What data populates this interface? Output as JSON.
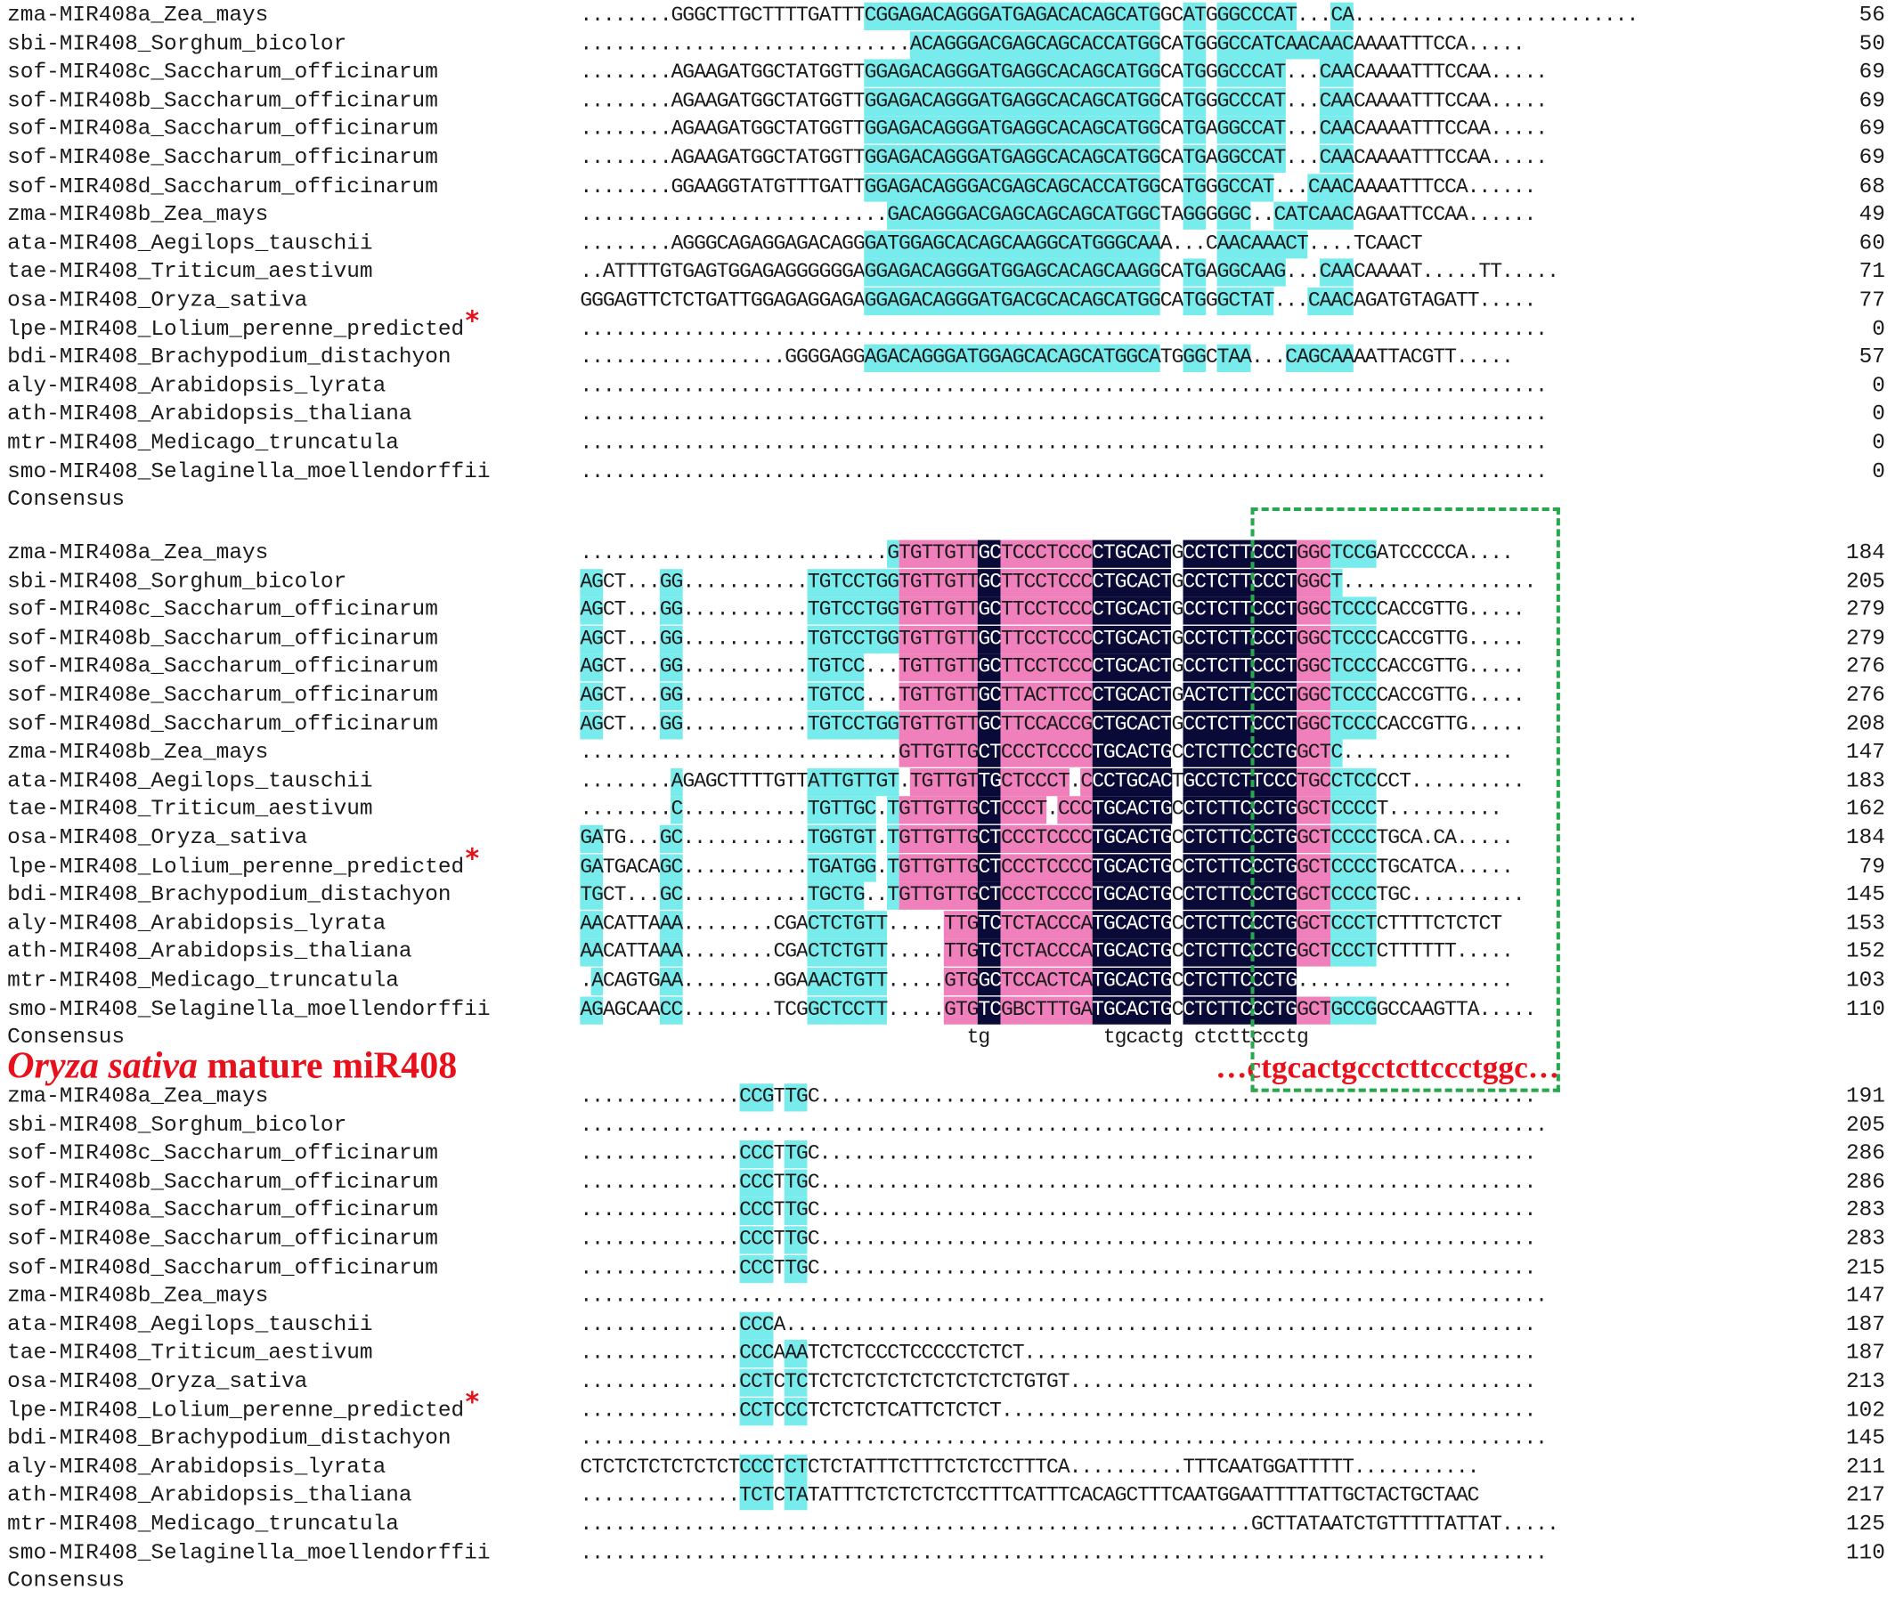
{
  "blocks": [
    {
      "rows": [
        {
          "name": "zma-MIR408a_Zea_mays",
          "seq": "........GGGCTTGCTTTTGATTTCGGAGACAGGGATGAGACACAGCATGGCATGGGCCCAT...CA.........................",
          "num": "56"
        },
        {
          "name": "sbi-MIR408_Sorghum_bicolor",
          "seq": ".............................ACAGGGACGAGCAGCACCATGGCATGGGCCATCAACAACAAAATTTCCA.....",
          "num": "50"
        },
        {
          "name": "sof-MIR408c_Saccharum_officinarum",
          "seq": "........AGAAGATGGCTATGGTTGGAGACAGGGATGAGGCACAGCATGGCATGGGCCCAT...CAACAAAATTTCCAA.....",
          "num": "69"
        },
        {
          "name": "sof-MIR408b_Saccharum_officinarum",
          "seq": "........AGAAGATGGCTATGGTTGGAGACAGGGATGAGGCACAGCATGGCATGGGCCCAT...CAACAAAATTTCCAA.....",
          "num": "69"
        },
        {
          "name": "sof-MIR408a_Saccharum_officinarum",
          "seq": "........AGAAGATGGCTATGGTTGGAGACAGGGATGAGGCACAGCATGGCATGAGGCCAT...CAACAAAATTTCCAA.....",
          "num": "69"
        },
        {
          "name": "sof-MIR408e_Saccharum_officinarum",
          "seq": "........AGAAGATGGCTATGGTTGGAGACAGGGATGAGGCACAGCATGGCATGAGGCCAT...CAACAAAATTTCCAA.....",
          "num": "69"
        },
        {
          "name": "sof-MIR408d_Saccharum_officinarum",
          "seq": "........GGAAGGTATGTTTGATTGGAGACAGGGACGAGCAGCACCATGGCATGGGCCAT...CAACAAAATTTCCA......",
          "num": "68"
        },
        {
          "name": "zma-MIR408b_Zea_mays",
          "seq": "...........................GACAGGGACGAGCAGCAGCATGGCTAGGGGGC..CATCAACAGAATTCCAA......",
          "num": "49"
        },
        {
          "name": "ata-MIR408_Aegilops_tauschii",
          "seq": "........AGGGCAGAGGAGACAGGGATGGAGCACAGCAAGGCATGGGCAAA...CAACAAACT....TCAACT",
          "num": "60"
        },
        {
          "name": "tae-MIR408_Triticum_aestivum",
          "seq": "..ATTTTGTGAGTGGAGAGGGGGGAGGAGACAGGGATGGAGCACAGCAAGGCATGAGGCAAG...CAACAAAAT.....TT.....",
          "num": "71"
        },
        {
          "name": "osa-MIR408_Oryza_sativa",
          "seq": "GGGAGTTCTCTGATTGGAGAGGAGAGGAGACAGGGATGACGCACAGCATGGCATGGGCTAT...CAACAGATGTAGATT.....",
          "num": "77"
        },
        {
          "name": "lpe-MIR408_Lolium_perenne_predicted",
          "star": "*",
          "seq": ".....................................................................................",
          "num": "0"
        },
        {
          "name": "bdi-MIR408_Brachypodium_distachyon",
          "seq": "..................GGGGAGGAGACAGGGATGGAGCACAGCATGGCATGGGCTAA...CAGCAAAATTACGTT.....",
          "num": "57"
        },
        {
          "name": "aly-MIR408_Arabidopsis_lyrata",
          "seq": ".....................................................................................",
          "num": "0"
        },
        {
          "name": "ath-MIR408_Arabidopsis_thaliana",
          "seq": ".....................................................................................",
          "num": "0"
        },
        {
          "name": "mtr-MIR408_Medicago_truncatula",
          "seq": ".....................................................................................",
          "num": "0"
        },
        {
          "name": "smo-MIR408_Selaginella_moellendorffii",
          "seq": ".....................................................................................",
          "num": "0"
        }
      ],
      "consensus_label": "Consensus",
      "consensus_seq": ""
    },
    {
      "rows": [
        {
          "name": "zma-MIR408a_Zea_mays",
          "seq": "...........................GTGTTGTTGCTCCCTCCCCTGCACTGCCTCTTCCCTGGCTCCGATCCCCCA....",
          "num": "184"
        },
        {
          "name": "sbi-MIR408_Sorghum_bicolor",
          "seq": "AGCT...GG...........TGTCCTGGTGTTGTTGCTTCCTCCCCTGCACTGCCTCTTCCCTGGCT.................",
          "num": "205"
        },
        {
          "name": "sof-MIR408c_Saccharum_officinarum",
          "seq": "AGCT...GG...........TGTCCTGGTGTTGTTGCTTCCTCCCCTGCACTGCCTCTTCCCTGGCTCCCCACCGTTG.....",
          "num": "279"
        },
        {
          "name": "sof-MIR408b_Saccharum_officinarum",
          "seq": "AGCT...GG...........TGTCCTGGTGTTGTTGCTTCCTCCCCTGCACTGCCTCTTCCCTGGCTCCCCACCGTTG.....",
          "num": "279"
        },
        {
          "name": "sof-MIR408a_Saccharum_officinarum",
          "seq": "AGCT...GG...........TGTCC...TGTTGTTGCTTCCTCCCCTGCACTGCCTCTTCCCTGGCTCCCCACCGTTG.....",
          "num": "276"
        },
        {
          "name": "sof-MIR408e_Saccharum_officinarum",
          "seq": "AGCT...GG...........TGTCC...TGTTGTTGCTTACTTCCCTGCACTGACTCTTCCCTGGCTCCCCACCGTTG.....",
          "num": "276"
        },
        {
          "name": "sof-MIR408d_Saccharum_officinarum",
          "seq": "AGCT...GG...........TGTCCTGGTGTTGTTGCTTCCACCGCTGCACTGCCTCTTCCCTGGCTCCCCACCGTTG.....",
          "num": "208"
        },
        {
          "name": "zma-MIR408b_Zea_mays",
          "seq": "............................GTTGTTGCTCCCTCCCCTGCACTGCCTCTTCCCTGGCTC...............",
          "num": "147"
        },
        {
          "name": "ata-MIR408_Aegilops_tauschii",
          "seq": "........AGAGCTTTTGTTATTGTTGT.TGTTGTTGCTCCCT.CCCTGCACTGCCTCTTCCCTGCCTCCCCT..........",
          "num": "183"
        },
        {
          "name": "tae-MIR408_Triticum_aestivum",
          "seq": "........C...........TGTTGC.TGTTGTTGCTCCCT.CCCTGCACTGCCTCTTCCCTGGCTCCCCT..........",
          "num": "162"
        },
        {
          "name": "osa-MIR408_Oryza_sativa",
          "seq": "GATG...GC...........TGGTGT.TGTTGTTGCTCCCTCCCCTGCACTGCCTCTTCCCTGGCTCCCCTGCA.CA.....",
          "num": "184"
        },
        {
          "name": "lpe-MIR408_Lolium_perenne_predicted",
          "star": "*",
          "seq": "GATGACAGC...........TGATGG.TGTTGTTGCTCCCTCCCCTGCACTGCCTCTTCCCTGGCTCCCCTGCATCA.....",
          "num": "79"
        },
        {
          "name": "bdi-MIR408_Brachypodium_distachyon",
          "seq": "TGCT...GC...........TGCTG..TGTTGTTGCTCCCTCCCCTGCACTGCCTCTTCCCTGGCTCCCCTGC..........",
          "num": "145"
        },
        {
          "name": "aly-MIR408_Arabidopsis_lyrata",
          "seq": "AACATTAAA........CGACTCTGTT.....TTGTCTCTACCCATGCACTGCCTCTTCCCTGGCTCCCTCTTTTCTCTCT",
          "num": "153"
        },
        {
          "name": "ath-MIR408_Arabidopsis_thaliana",
          "seq": "AACATTAAA........CGACTCTGTT.....TTGTCTCTACCCATGCACTGCCTCTTCCCTGGCTCCCTCTTTTTT.....",
          "num": "152"
        },
        {
          "name": "mtr-MIR408_Medicago_truncatula",
          "seq": ".ACAGTGAA........GGAAACTGTT.....GTGGCTCCACTCATGCACTGCCTCTTCCCTG...................",
          "num": "103"
        },
        {
          "name": "smo-MIR408_Selaginella_moellendorffii",
          "seq": "AGAGCAACC........TCGGCTCCTT.....GTGTCGBCTTTGATGCACTGCCTCTTCCCTGGCTGCCGGCCAAGTTA.....",
          "num": "110"
        }
      ],
      "consensus_label": "Consensus",
      "consensus_seq": "                                  tg          tgcactg ctcttccctg"
    },
    {
      "rows": [
        {
          "name": "zma-MIR408a_Zea_mays",
          "seq": "..............CCGTTGC...............................................................",
          "num": "191"
        },
        {
          "name": "sbi-MIR408_Sorghum_bicolor",
          "seq": ".....................................................................................",
          "num": "205"
        },
        {
          "name": "sof-MIR408c_Saccharum_officinarum",
          "seq": "..............CCCTTGC...............................................................",
          "num": "286"
        },
        {
          "name": "sof-MIR408b_Saccharum_officinarum",
          "seq": "..............CCCTTGC...............................................................",
          "num": "286"
        },
        {
          "name": "sof-MIR408a_Saccharum_officinarum",
          "seq": "..............CCCTTGC...............................................................",
          "num": "283"
        },
        {
          "name": "sof-MIR408e_Saccharum_officinarum",
          "seq": "..............CCCTTGC...............................................................",
          "num": "283"
        },
        {
          "name": "sof-MIR408d_Saccharum_officinarum",
          "seq": "..............CCCTTGC...............................................................",
          "num": "215"
        },
        {
          "name": "zma-MIR408b_Zea_mays",
          "seq": ".....................................................................................",
          "num": "147"
        },
        {
          "name": "ata-MIR408_Aegilops_tauschii",
          "seq": "..............CCCA..................................................................",
          "num": "187"
        },
        {
          "name": "tae-MIR408_Triticum_aestivum",
          "seq": "..............CCCAAATCTCTCCCTCCCCCTCTCT.............................................",
          "num": "187"
        },
        {
          "name": "osa-MIR408_Oryza_sativa",
          "seq": "..............CCTCTCTCTCTCTCTCTCTCTCTCTGTGT.........................................",
          "num": "213"
        },
        {
          "name": "lpe-MIR408_Lolium_perenne_predicted",
          "star": "*",
          "seq": "..............CCTCCCTCTCTCTCATTCTCTCT...............................................",
          "num": "102"
        },
        {
          "name": "bdi-MIR408_Brachypodium_distachyon",
          "seq": ".....................................................................................",
          "num": "145"
        },
        {
          "name": "aly-MIR408_Arabidopsis_lyrata",
          "seq": "CTCTCTCTCTCTCTCCCTCTCTCTATTTCTTTCTCTCCTTTCA..........TTTCAATGGATTTTT...........",
          "num": "211"
        },
        {
          "name": "ath-MIR408_Arabidopsis_thaliana",
          "seq": "..............TCTCTATATTTCTCTCTCTCCTTTCATTTCACAGCTTTCAATGGAATTTTATTGCTACTGCTAAC",
          "num": "217"
        },
        {
          "name": "mtr-MIR408_Medicago_truncatula",
          "seq": "...........................................................GCTTATAATCTGTTTTTATTAT.....",
          "num": "125"
        },
        {
          "name": "smo-MIR408_Selaginella_moellendorffii",
          "seq": ".....................................................................................",
          "num": "110"
        }
      ],
      "consensus_label": "Consensus",
      "consensus_seq": ""
    }
  ],
  "annotation": {
    "mature_label_italic": "Oryza sativa",
    "mature_label_rest": " mature miR408",
    "mature_seq": "…ctgcactgcctcttccctggc…"
  },
  "colors": {
    "identity_low": "#78ecec",
    "identity_mid": "#ef80bc",
    "identity_full": "#0a0a38",
    "annotation_red": "#e8101a",
    "box_green": "#28a84e"
  }
}
